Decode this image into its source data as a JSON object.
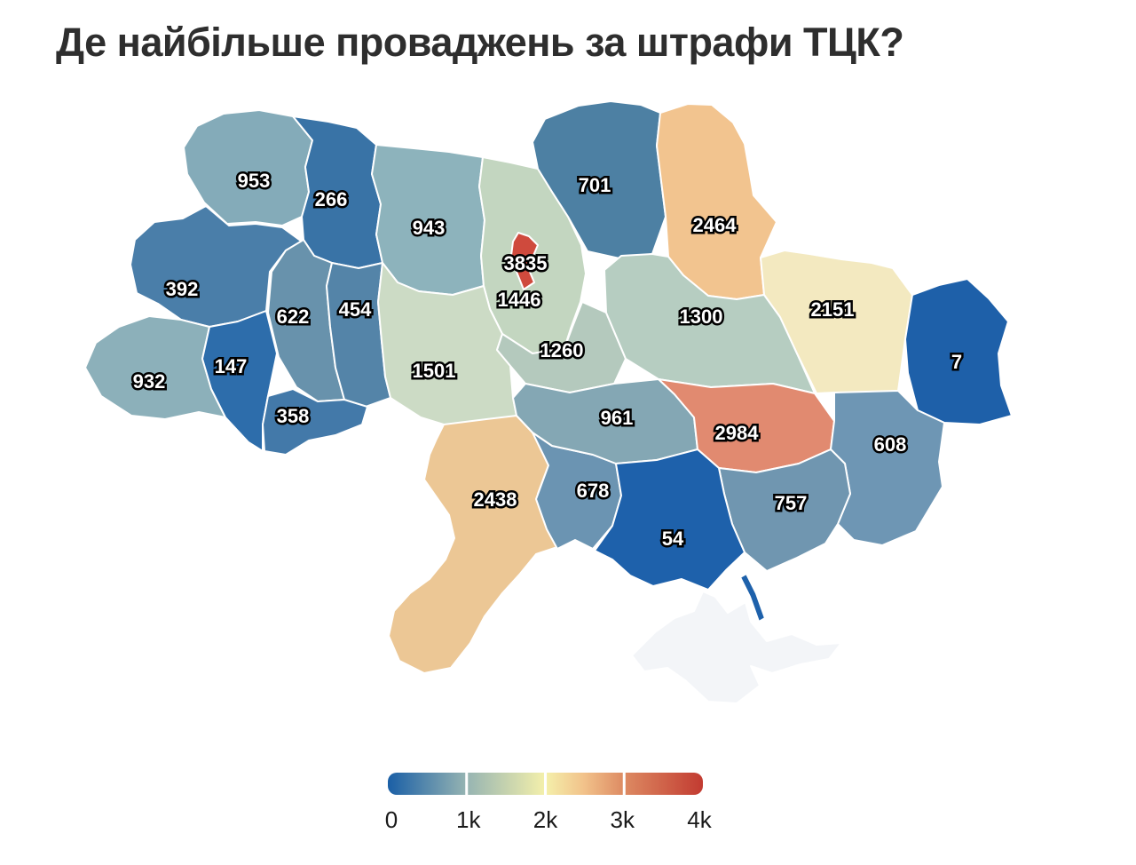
{
  "title": "Де найбільше проваджень за штрафи ТЦК?",
  "chart_data": {
    "type": "choropleth",
    "subject": "Ukraine oblasts, number of proceedings for TCC fines",
    "regions": [
      {
        "id": "volyn",
        "name": "Volyn",
        "value": 953,
        "label": "953",
        "color": "#84abb9"
      },
      {
        "id": "rivne",
        "name": "Rivne",
        "value": 266,
        "label": "266",
        "color": "#3973a6"
      },
      {
        "id": "zhytomyr",
        "name": "Zhytomyr",
        "value": 943,
        "label": "943",
        "color": "#8db3bc"
      },
      {
        "id": "kyiv-oblast",
        "name": "Kyiv Oblast",
        "value": 1446,
        "label": "1446",
        "color": "#c3d6c0"
      },
      {
        "id": "chernihiv",
        "name": "Chernihiv",
        "value": 701,
        "label": "701",
        "color": "#4d80a3"
      },
      {
        "id": "sumy",
        "name": "Sumy",
        "value": 2464,
        "label": "2464",
        "color": "#f2c48f"
      },
      {
        "id": "lviv",
        "name": "Lviv",
        "value": 392,
        "label": "392",
        "color": "#4a7ea9"
      },
      {
        "id": "ternopil",
        "name": "Ternopil",
        "value": 622,
        "label": "622",
        "color": "#6892ac"
      },
      {
        "id": "khmelnytskyi",
        "name": "Khmelnytskyi",
        "value": 454,
        "label": "454",
        "color": "#5484a8"
      },
      {
        "id": "vinnytsia",
        "name": "Vinnytsia",
        "value": 1501,
        "label": "1501",
        "color": "#ccdbc5"
      },
      {
        "id": "cherkasy",
        "name": "Cherkasy",
        "value": 1260,
        "label": "1260",
        "color": "#b4c9bd"
      },
      {
        "id": "poltava",
        "name": "Poltava",
        "value": 1300,
        "label": "1300",
        "color": "#b6cdc1"
      },
      {
        "id": "kharkiv",
        "name": "Kharkiv",
        "value": 2151,
        "label": "2151",
        "color": "#f3e9c0"
      },
      {
        "id": "luhansk",
        "name": "Luhansk",
        "value": 7,
        "label": "7",
        "color": "#1e60a9"
      },
      {
        "id": "zakarpattia",
        "name": "Zakarpattia",
        "value": 932,
        "label": "932",
        "color": "#8cb0ba"
      },
      {
        "id": "ivano-frankivsk",
        "name": "Ivano-Frankivsk",
        "value": 147,
        "label": "147",
        "color": "#2d6dab"
      },
      {
        "id": "chernivtsi",
        "name": "Chernivtsi",
        "value": 358,
        "label": "358",
        "color": "#4379a9"
      },
      {
        "id": "odesa",
        "name": "Odesa",
        "value": 2438,
        "label": "2438",
        "color": "#ecc795"
      },
      {
        "id": "mykolaiv",
        "name": "Mykolaiv",
        "value": 678,
        "label": "678",
        "color": "#6b94b2"
      },
      {
        "id": "kirovohrad",
        "name": "Kirovohrad",
        "value": 961,
        "label": "961",
        "color": "#84a7b4"
      },
      {
        "id": "dnipropetrovsk",
        "name": "Dnipropetrovsk",
        "value": 2984,
        "label": "2984",
        "color": "#e18a70"
      },
      {
        "id": "donetsk",
        "name": "Donetsk",
        "value": 608,
        "label": "608",
        "color": "#6e96b4"
      },
      {
        "id": "zaporizhzhia",
        "name": "Zaporizhzhia",
        "value": 757,
        "label": "757",
        "color": "#7096b0"
      },
      {
        "id": "kherson",
        "name": "Kherson",
        "value": 54,
        "label": "54",
        "color": "#1e61ab"
      },
      {
        "id": "kyiv-city",
        "name": "Kyiv City",
        "value": 3835,
        "label": "3835",
        "color": "#cf4a3d"
      },
      {
        "id": "crimea",
        "name": "Crimea",
        "value": null,
        "label": "",
        "color": "#f3f5f8",
        "stroke": "#c3cde2",
        "no_data": true
      }
    ],
    "legend": {
      "min": 0,
      "max": 4000,
      "ticks": [
        "0",
        "1k",
        "2k",
        "3k",
        "4k"
      ],
      "gradient": [
        {
          "pos": 0,
          "color": "#1a5fa6"
        },
        {
          "pos": 0.25,
          "color": "#96b4b2"
        },
        {
          "pos": 0.5,
          "color": "#f4f0ab"
        },
        {
          "pos": 0.62,
          "color": "#f2c38b"
        },
        {
          "pos": 0.75,
          "color": "#dd8a62"
        },
        {
          "pos": 1,
          "color": "#c23b31"
        }
      ]
    }
  },
  "colors": {
    "background": "#ffffff",
    "title": "#2e2e2e",
    "region_border": "#ffffff",
    "label_fill": "#ffffff",
    "label_outline": "#000000",
    "tick_color": "#1a1a1a"
  }
}
